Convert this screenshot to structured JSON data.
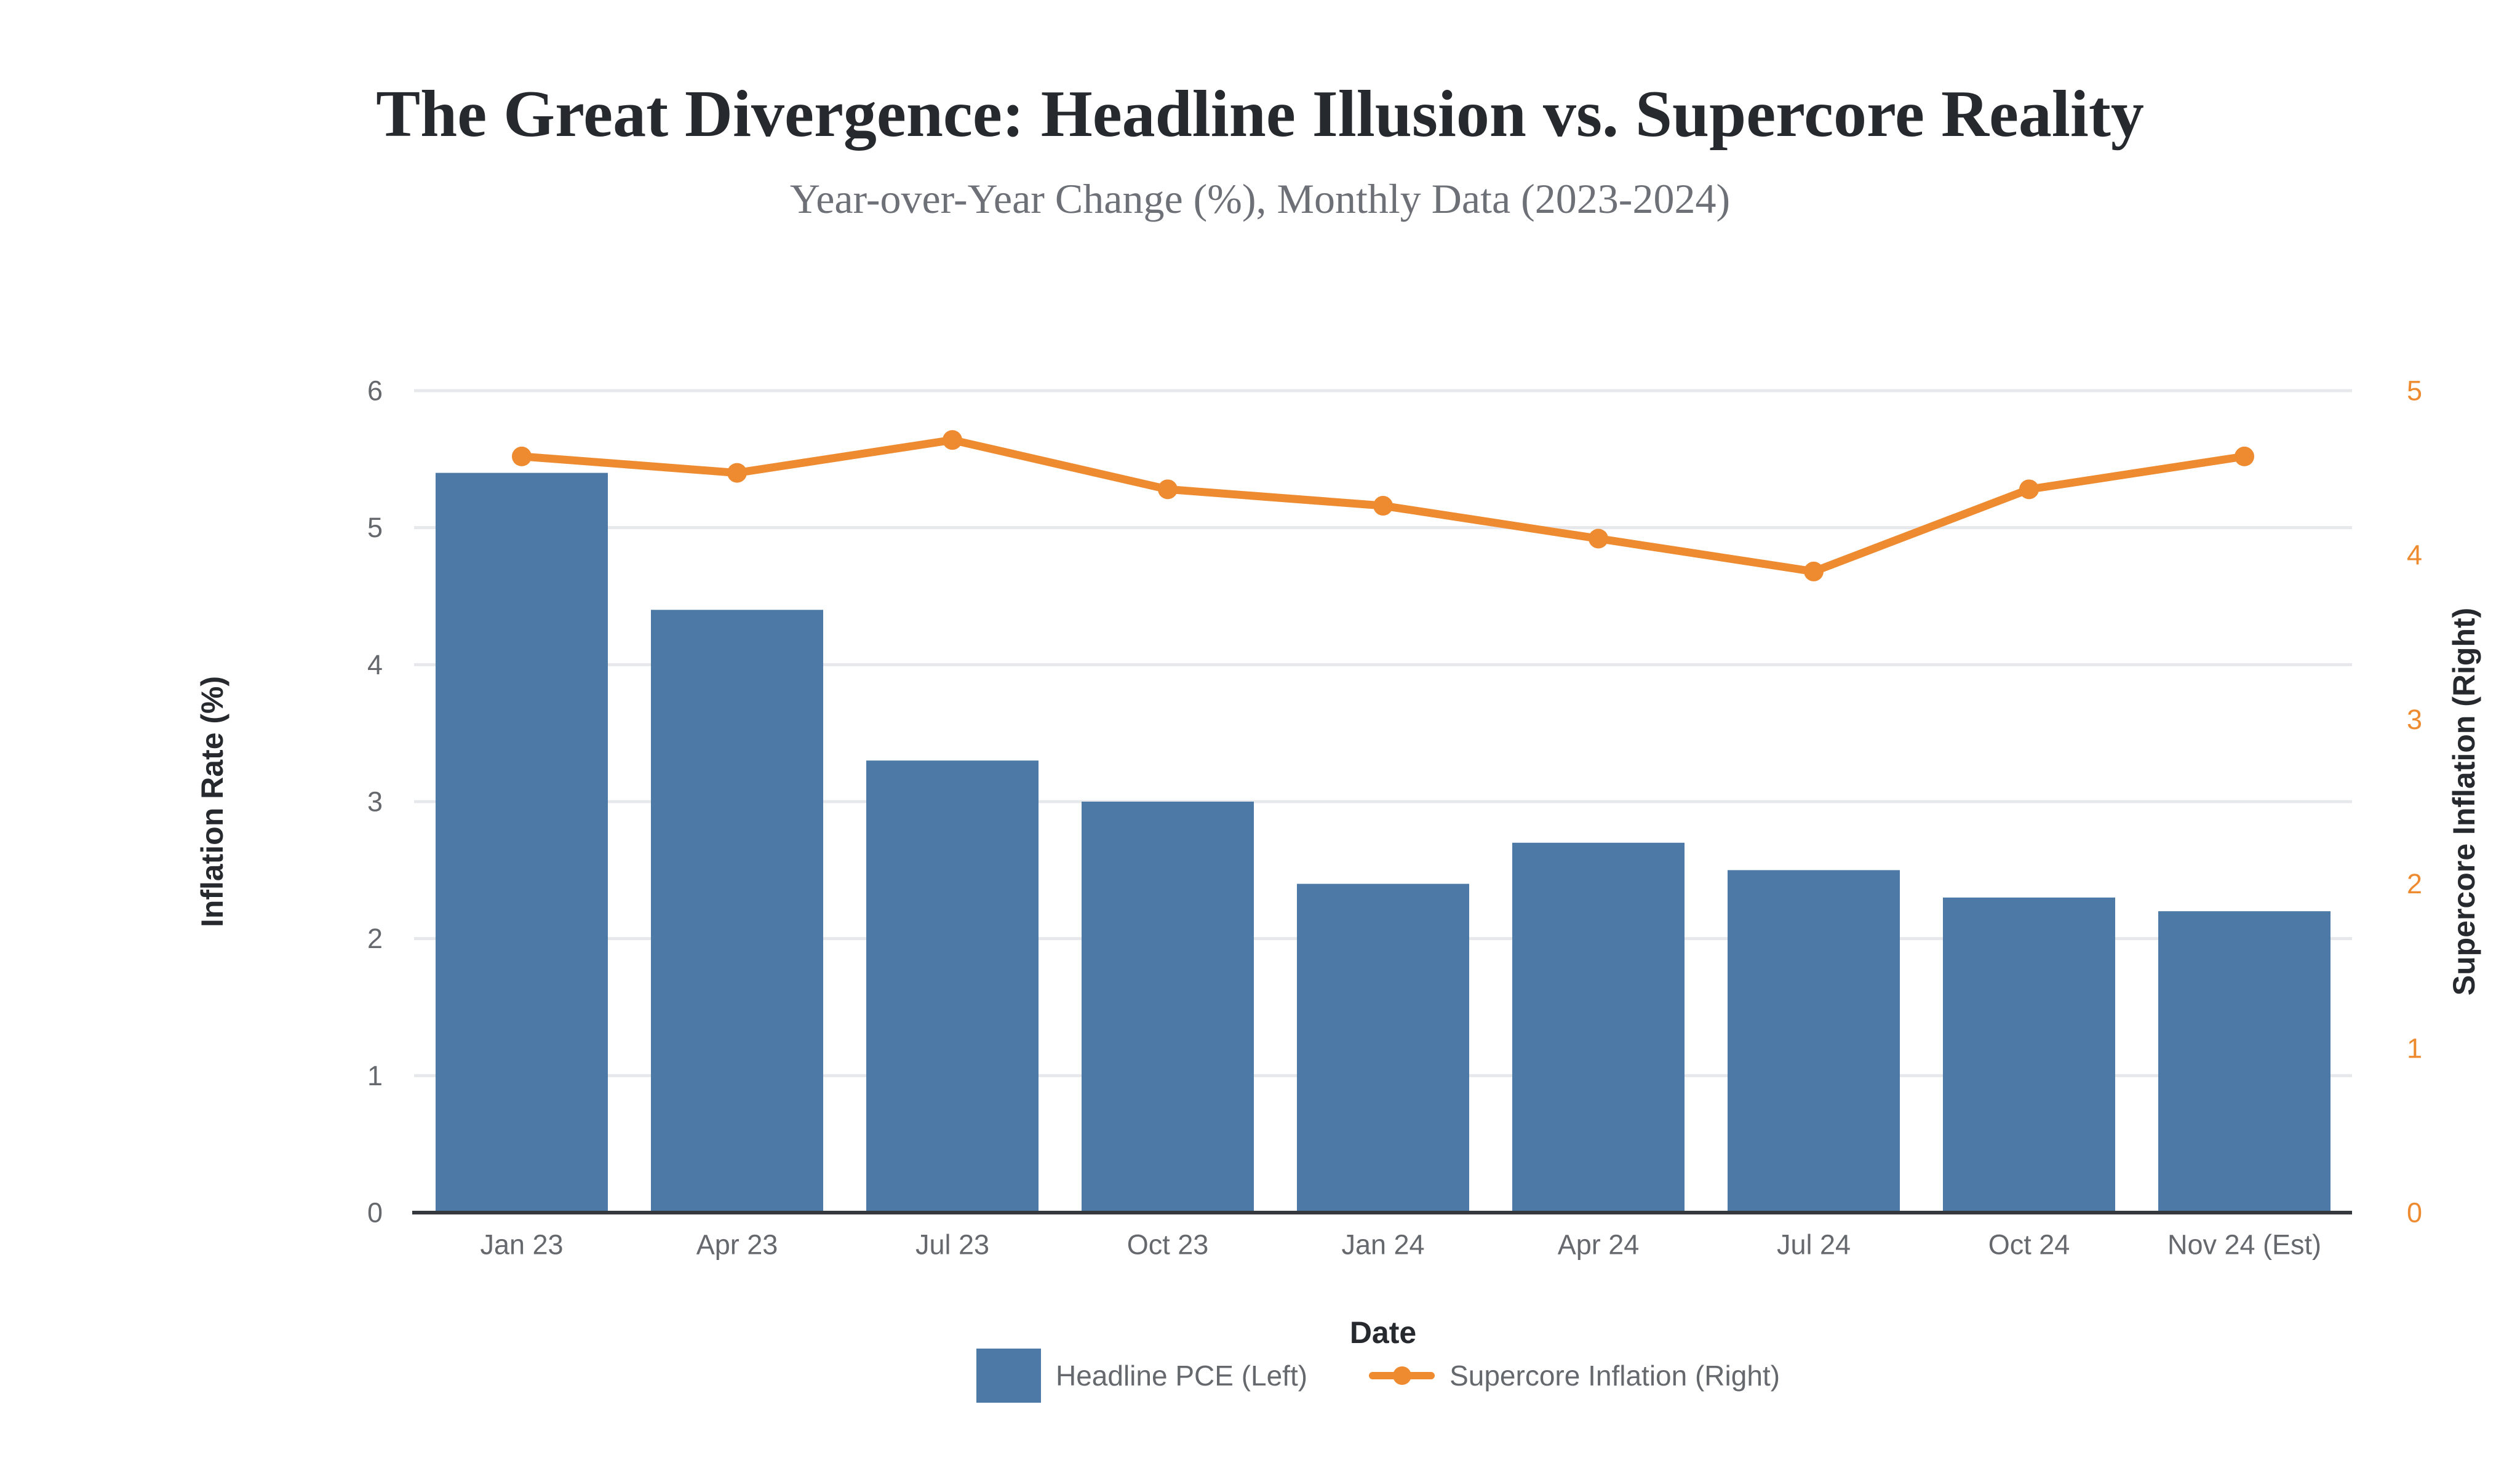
{
  "colors": {
    "background": "#ffffff",
    "bar": "#4d79a6",
    "line": "#ee8b30",
    "grid": "#e6e8ec",
    "axis_line": "#35393d",
    "tick_text": "#65686d",
    "right_tick_text": "#ee8b30",
    "title_text": "#26292e",
    "subtitle_text": "#6d7077",
    "axis_title_text": "#26292e"
  },
  "chart_data": {
    "type": "combo-bar-line-dual-axis",
    "title": "The Great Divergence: Headline Illusion vs. Supercore Reality",
    "subtitle": "Year-over-Year Change (%), Monthly Data (2023-2024)",
    "categories": [
      "Jan 23",
      "Apr 23",
      "Jul 23",
      "Oct 23",
      "Jan 24",
      "Apr 24",
      "Jul 24",
      "Oct 24",
      "Nov 24 (Est)"
    ],
    "series": [
      {
        "name": "Headline PCE (Left)",
        "type": "bar",
        "axis": "left",
        "color": "#4d79a6",
        "values": [
          5.4,
          4.4,
          3.3,
          3.0,
          2.4,
          2.7,
          2.5,
          2.3,
          2.2
        ]
      },
      {
        "name": "Supercore Inflation (Right)",
        "type": "line",
        "axis": "right",
        "color": "#ee8b30",
        "values": [
          4.6,
          4.5,
          4.7,
          4.4,
          4.3,
          4.1,
          3.9,
          4.4,
          4.6
        ]
      }
    ],
    "xlabel": "Date",
    "ylabel_left": "Inflation Rate (%)",
    "ylabel_right": "Supercore Inflation (Right)",
    "ylim_left": [
      0,
      6
    ],
    "ylim_right": [
      0,
      5
    ],
    "yticks_left": [
      0,
      1,
      2,
      3,
      4,
      5,
      6
    ],
    "yticks_right": [
      0,
      1,
      2,
      3,
      4,
      5
    ],
    "grid": "horizontal",
    "legend_position": "bottom"
  },
  "legend": {
    "items": [
      {
        "label": "Headline PCE (Left)",
        "marker": "square"
      },
      {
        "label": "Supercore Inflation (Right)",
        "marker": "line-dot"
      }
    ]
  }
}
